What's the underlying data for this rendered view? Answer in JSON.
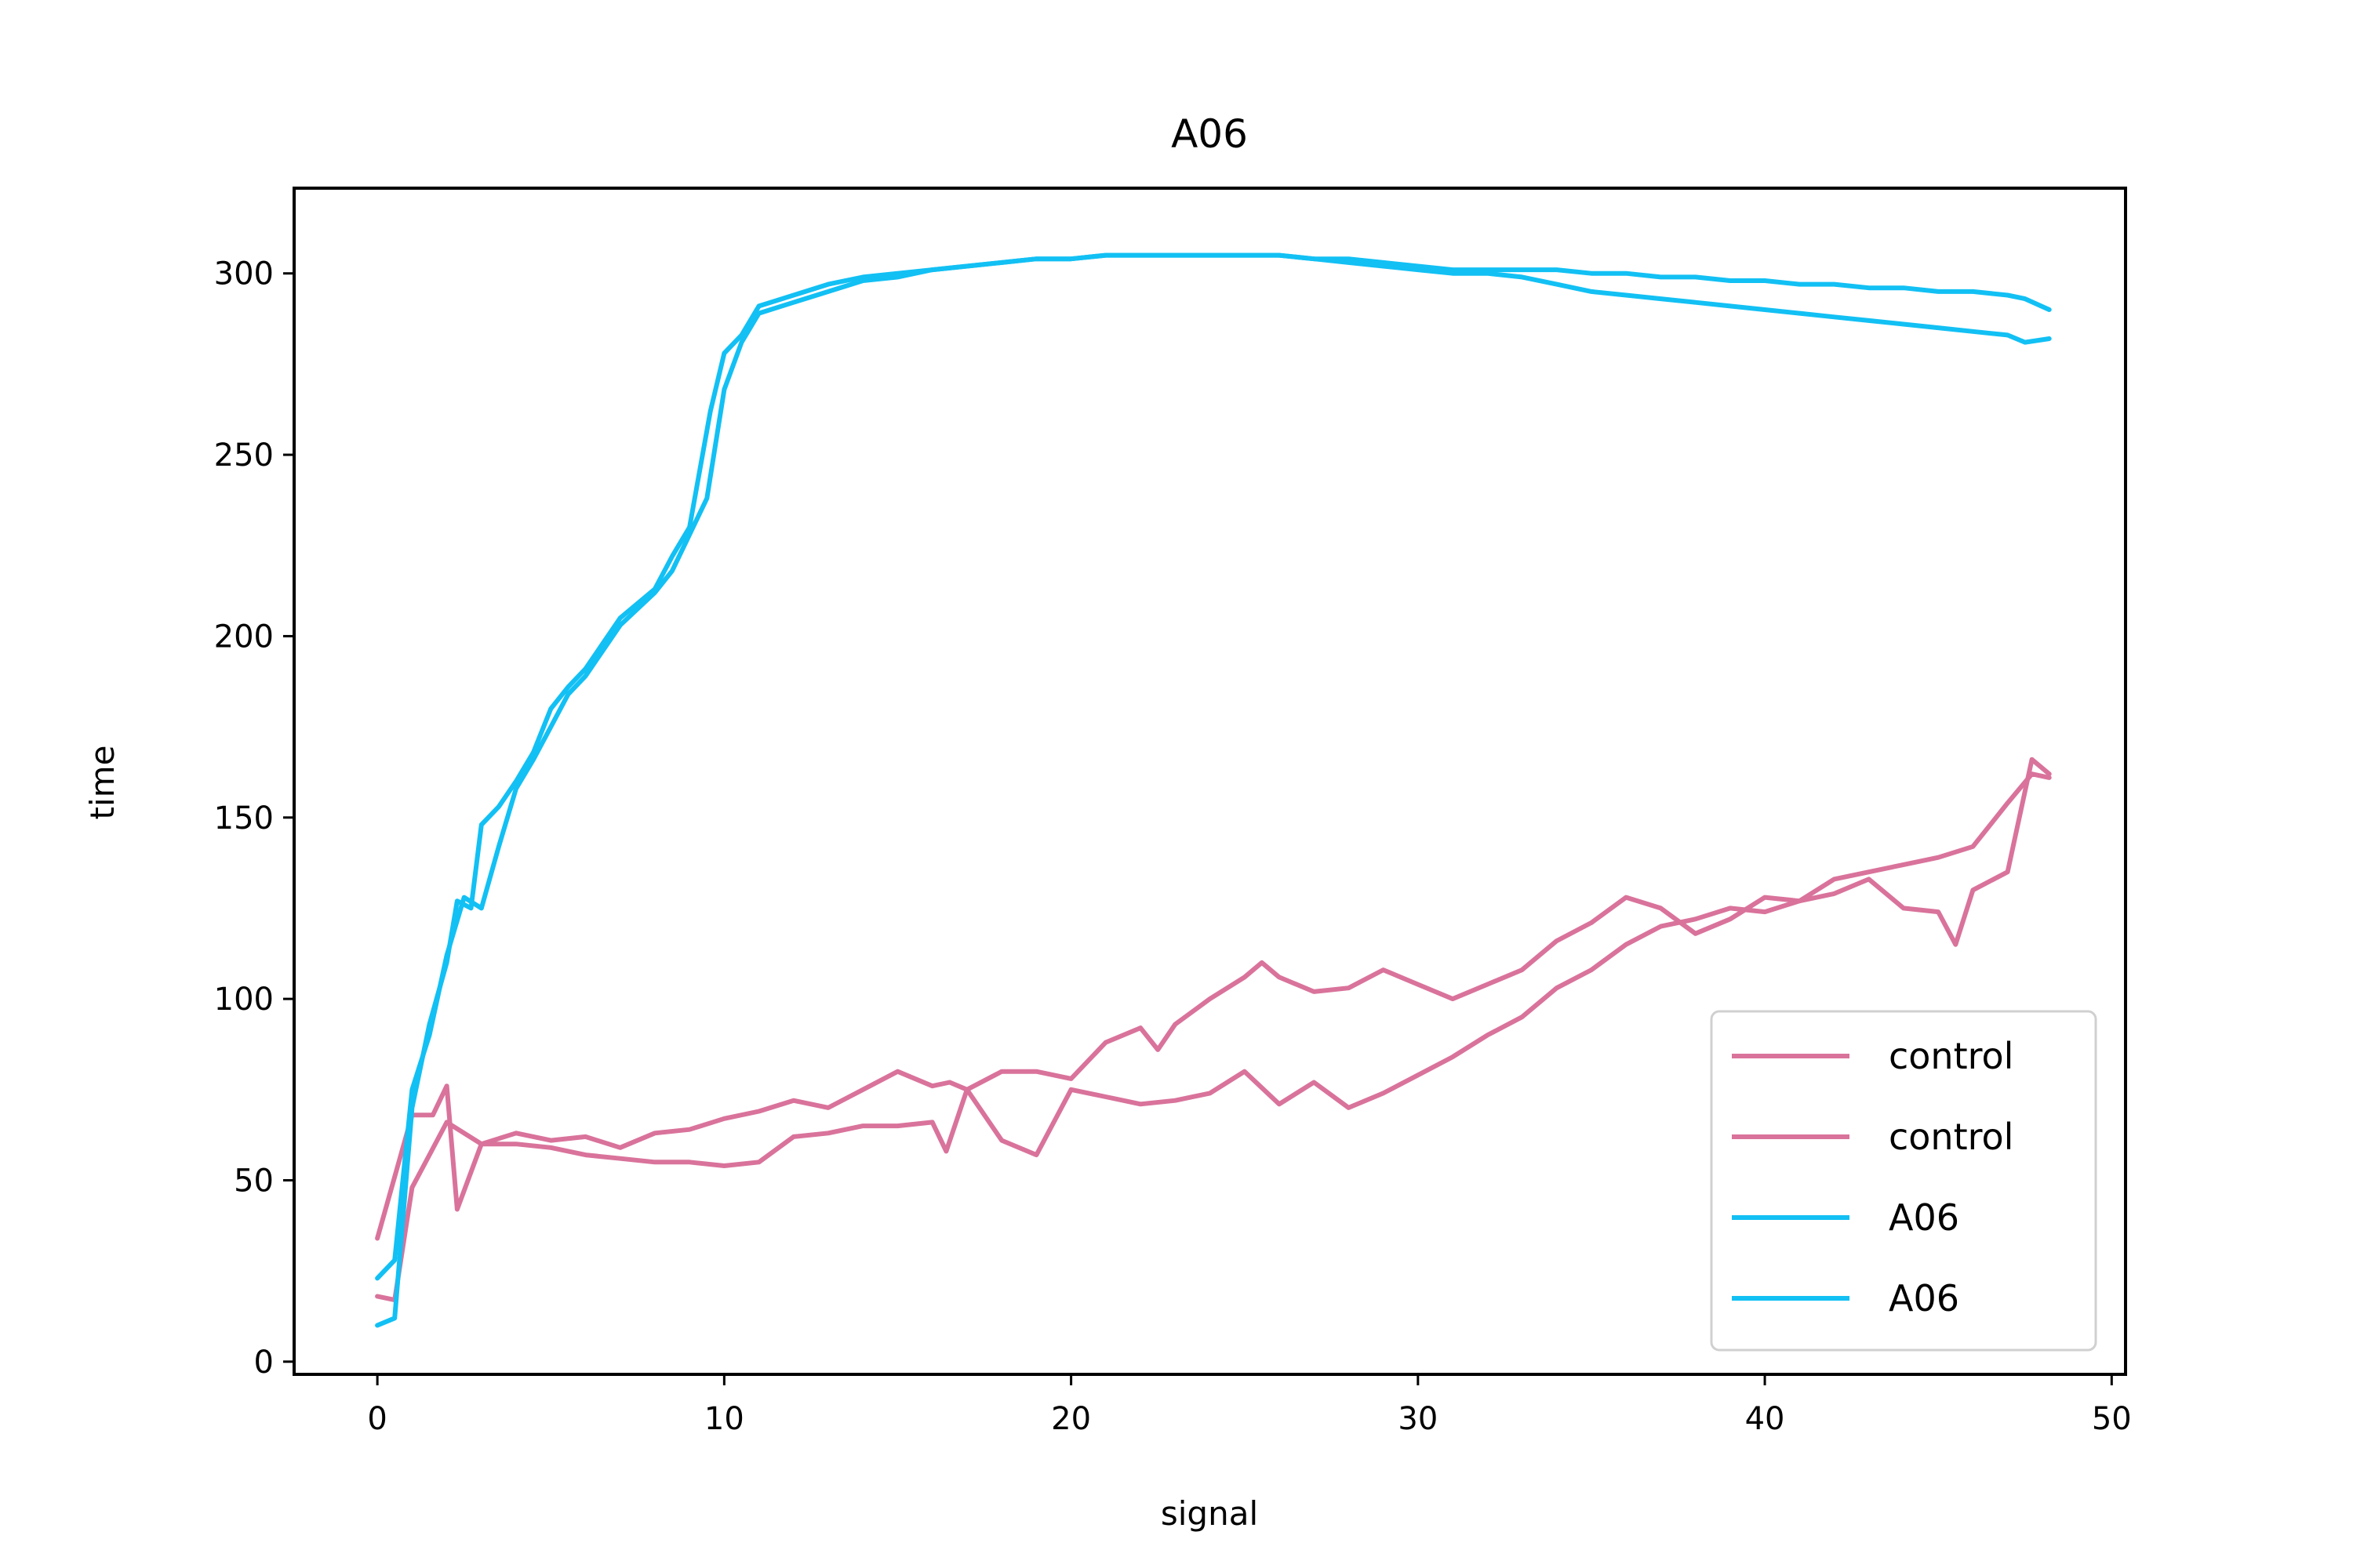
{
  "chart_data": {
    "type": "line",
    "title": "A06",
    "xlabel": "signal",
    "ylabel": "time",
    "xlim": [
      -2.4,
      50.4
    ],
    "ylim": [
      -3.5,
      323.5
    ],
    "x_ticks": [
      0,
      10,
      20,
      30,
      40,
      50
    ],
    "y_ticks": [
      0,
      50,
      100,
      150,
      200,
      250,
      300
    ],
    "grid": false,
    "legend_placement": "bottom-right",
    "series": [
      {
        "name": "control",
        "color": "#d9739b",
        "x": [
          0,
          1,
          1.6,
          2,
          2.3,
          3,
          4,
          5,
          6,
          7,
          8,
          9,
          10,
          11,
          12,
          13,
          14,
          15,
          16,
          16.5,
          17,
          18,
          19,
          20,
          21,
          22,
          22.5,
          23,
          24,
          25,
          25.5,
          26,
          27,
          28,
          29,
          30,
          31,
          32,
          33,
          34,
          35,
          36,
          37,
          38,
          39,
          40,
          41,
          42,
          43,
          44,
          45,
          46,
          47,
          47.7,
          48.2
        ],
        "y": [
          34,
          68,
          68,
          76,
          42,
          60,
          63,
          61,
          62,
          59,
          63,
          64,
          67,
          69,
          72,
          70,
          75,
          80,
          76,
          77,
          75,
          80,
          80,
          78,
          88,
          92,
          86,
          93,
          100,
          106,
          110,
          106,
          102,
          103,
          108,
          104,
          100,
          104,
          108,
          116,
          121,
          128,
          125,
          118,
          122,
          128,
          127,
          133,
          135,
          137,
          139,
          142,
          154,
          162,
          161
        ]
      },
      {
        "name": "control",
        "color": "#d9739b",
        "x": [
          0,
          0.5,
          1,
          1.5,
          2,
          3,
          4,
          5,
          6,
          7,
          8,
          9,
          10,
          11,
          12,
          13,
          14,
          15,
          16,
          16.4,
          17,
          18,
          19,
          20,
          21,
          22,
          23,
          24,
          25,
          26,
          27,
          28,
          29,
          30,
          31,
          32,
          33,
          34,
          35,
          36,
          37,
          38,
          39,
          40,
          41,
          42,
          43,
          44,
          45,
          45.5,
          46,
          47,
          47.7,
          48.2
        ],
        "y": [
          18,
          17,
          48,
          57,
          66,
          60,
          60,
          59,
          57,
          56,
          55,
          55,
          54,
          55,
          62,
          63,
          65,
          65,
          66,
          58,
          75,
          61,
          57,
          75,
          73,
          71,
          72,
          74,
          80,
          71,
          77,
          70,
          74,
          79,
          84,
          90,
          95,
          103,
          108,
          115,
          120,
          122,
          125,
          124,
          127,
          129,
          133,
          125,
          124,
          115,
          130,
          135,
          166,
          162
        ]
      },
      {
        "name": "A06",
        "color": "#12c0f4",
        "x": [
          0,
          0.5,
          1,
          1.5,
          2,
          2.3,
          2.7,
          3,
          3.5,
          4,
          4.5,
          5,
          5.5,
          6,
          7,
          8,
          8.5,
          9,
          9.3,
          9.6,
          10,
          10.5,
          11,
          12,
          13,
          14,
          15,
          16,
          17,
          18,
          19,
          20,
          21,
          22,
          23,
          24,
          25,
          26,
          27,
          28,
          29,
          30,
          31,
          32,
          33,
          34,
          35,
          36,
          37,
          38,
          39,
          40,
          41,
          42,
          43,
          44,
          45,
          46,
          47,
          47.5,
          48.2
        ],
        "y": [
          10,
          12,
          70,
          93,
          110,
          127,
          125,
          148,
          153,
          160,
          168,
          180,
          186,
          191,
          205,
          213,
          222,
          230,
          246,
          262,
          278,
          283,
          291,
          294,
          297,
          299,
          300,
          301,
          302,
          303,
          304,
          304,
          305,
          305,
          305,
          305,
          305,
          305,
          304,
          303,
          302,
          301,
          300,
          300,
          299,
          297,
          295,
          294,
          293,
          292,
          291,
          290,
          289,
          288,
          287,
          286,
          285,
          284,
          283,
          281,
          282
        ]
      },
      {
        "name": "A06",
        "color": "#12c0f4",
        "x": [
          0,
          0.5,
          1,
          1.5,
          2,
          2.5,
          3,
          3.5,
          4,
          4.5,
          5,
          5.5,
          6,
          7,
          8,
          8.5,
          9,
          9.5,
          10,
          10.5,
          11,
          12,
          13,
          14,
          15,
          16,
          17,
          18,
          19,
          20,
          21,
          22,
          23,
          24,
          25,
          26,
          27,
          28,
          29,
          30,
          31,
          32,
          33,
          34,
          35,
          36,
          37,
          38,
          39,
          40,
          41,
          42,
          43,
          44,
          45,
          46,
          47,
          47.5,
          48.2
        ],
        "y": [
          23,
          28,
          75,
          90,
          112,
          128,
          125,
          142,
          158,
          166,
          175,
          184,
          189,
          203,
          212,
          218,
          228,
          238,
          268,
          281,
          289,
          292,
          295,
          298,
          299,
          301,
          302,
          303,
          304,
          304,
          305,
          305,
          305,
          305,
          305,
          305,
          304,
          304,
          303,
          302,
          301,
          301,
          301,
          301,
          300,
          300,
          299,
          299,
          298,
          298,
          297,
          297,
          296,
          296,
          295,
          295,
          294,
          293,
          290
        ]
      }
    ],
    "legend": [
      "control",
      "control",
      "A06",
      "A06"
    ]
  }
}
